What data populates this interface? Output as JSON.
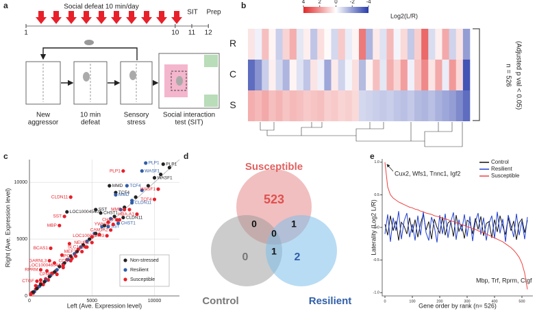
{
  "panel_labels": [
    "a",
    "b",
    "c",
    "d",
    "e"
  ],
  "panel_a": {
    "title": "Social defeat 10 min/day",
    "days": [
      1,
      10,
      11,
      12
    ],
    "events": [
      "SIT",
      "Prep"
    ],
    "steps": [
      [
        "New",
        "aggressor"
      ],
      [
        "10 min",
        "defeat"
      ],
      [
        "Sensory",
        "stress"
      ],
      [
        "Social interaction",
        "test (SIT)"
      ]
    ]
  },
  "panel_b": {
    "colorbar": {
      "ticks": [
        4,
        2,
        0,
        -2,
        -4
      ],
      "title": "Log2(L/R)"
    },
    "rows": [
      {
        "name": "R",
        "values": [
          0.5,
          -0.3,
          1.2,
          0.2,
          -1,
          0.8,
          1.5,
          -0.5,
          0.3,
          -1.2,
          0.6,
          0.1,
          -0.8,
          1.0,
          -0.4,
          0.2,
          2.5,
          -1.5,
          0.4,
          -0.6,
          1.3,
          -0.2,
          0.7,
          -1.1,
          0.9,
          2.8,
          -0.7,
          0.3,
          1.6,
          -0.9,
          0.5,
          -2
        ]
      },
      {
        "name": "C",
        "values": [
          -3,
          -2.2,
          -1,
          0.3,
          -0.8,
          -1.5,
          0.2,
          -0.6,
          -1.2,
          0.5,
          -0.3,
          -1.8,
          0.4,
          -0.9,
          -0.2,
          0.6,
          -1.4,
          0.2,
          1.2,
          -0.5,
          1.5,
          0.8,
          1.8,
          -0.3,
          1.1,
          2.2,
          0.5,
          1.6,
          -0.4,
          1.9,
          0.7,
          -3.5
        ]
      },
      {
        "name": "S",
        "values": [
          1.5,
          1.3,
          1.6,
          1.2,
          1.4,
          1.1,
          1.3,
          1.2,
          1.0,
          1.1,
          1.2,
          0.9,
          1.0,
          0.8,
          0.9,
          0.7,
          -0.8,
          -0.9,
          -1.0,
          -1.1,
          -1.0,
          -1.2,
          -1.3,
          -1.1,
          -1.4,
          -1.5,
          -1.3,
          -1.6,
          -1.8,
          -2.0,
          -2.4,
          -3.0
        ]
      }
    ],
    "annotation": [
      "n = 526",
      "(Adjusted p val < 0.05)"
    ]
  },
  "chart_data": [
    {
      "type": "scatter",
      "xlabel": "Left (Ave. Expression level)",
      "ylabel": "Right (Ave. Expression level)",
      "xlim": [
        0,
        12000
      ],
      "ylim": [
        0,
        12000
      ],
      "xticks": [
        0,
        5000,
        10000
      ],
      "yticks": [
        0,
        5000,
        10000
      ],
      "grid": true,
      "legend": "lower right",
      "series": [
        {
          "name": "Non-stressed",
          "color": "#222222",
          "x": [
            300,
            600,
            900,
            1200,
            1600,
            2000,
            2400,
            2800,
            3300,
            3800,
            4300,
            4800,
            5300,
            6000,
            6800,
            7600,
            8500,
            9500,
            10500,
            11200
          ],
          "y": [
            350,
            650,
            1000,
            1250,
            1700,
            2100,
            2600,
            2900,
            3500,
            3900,
            4500,
            5000,
            5500,
            6200,
            7000,
            7800,
            8700,
            9700,
            10700,
            11300
          ],
          "labels": [
            {
              "text": "PLP1",
              "x": 10700,
              "y": 11600
            },
            {
              "text": "WASF1",
              "x": 10000,
              "y": 10400
            },
            {
              "text": "TCF4",
              "x": 6900,
              "y": 9100
            },
            {
              "text": "MMD",
              "x": 6400,
              "y": 9700
            },
            {
              "text": "SST",
              "x": 5300,
              "y": 7600
            },
            {
              "text": "CHST1",
              "x": 5700,
              "y": 7300
            },
            {
              "text": "CLDN11",
              "x": 7500,
              "y": 6900
            },
            {
              "text": "LOC100045403",
              "x": 3000,
              "y": 7400
            }
          ]
        },
        {
          "name": "Resilient",
          "color": "#2f5ea8",
          "x": [
            400,
            800,
            1300,
            1700,
            2200,
            2700,
            3100,
            3600,
            4100,
            4600,
            5200,
            5800,
            6500,
            7300,
            8200,
            9000
          ],
          "y": [
            380,
            850,
            1350,
            1800,
            2300,
            2800,
            3200,
            3700,
            4300,
            4800,
            5500,
            6100,
            6800,
            7600,
            8400,
            9300
          ],
          "labels": [
            {
              "text": "PLP1",
              "x": 9300,
              "y": 11700
            },
            {
              "text": "WASF1",
              "x": 9000,
              "y": 11000
            },
            {
              "text": "TCF4",
              "x": 7800,
              "y": 9700
            },
            {
              "text": "MMD",
              "x": 6900,
              "y": 8900
            },
            {
              "text": "CLDN11",
              "x": 8200,
              "y": 8200
            },
            {
              "text": "CHST1",
              "x": 7100,
              "y": 6400
            },
            {
              "text": "SST",
              "x": 6300,
              "y": 6100
            }
          ]
        },
        {
          "name": "Susceptible",
          "color": "#e8202a",
          "x": [
            100,
            200,
            300,
            500,
            700,
            900,
            1100,
            1300,
            1500,
            1800,
            2100,
            2400,
            2700,
            3000,
            3400,
            3900,
            4500,
            5000,
            5600,
            6300,
            7000,
            8000,
            500,
            900,
            1400,
            2000,
            2600,
            3200
          ],
          "y": [
            150,
            300,
            250,
            600,
            800,
            1100,
            1000,
            1500,
            1400,
            2000,
            2200,
            2600,
            2500,
            3200,
            3300,
            4100,
            4300,
            5200,
            5400,
            6500,
            6700,
            7600,
            900,
            1400,
            2200,
            2900,
            3600,
            4600
          ],
          "labels": [
            {
              "text": "PLP1",
              "x": 7500,
              "y": 11000
            },
            {
              "text": "WASF1",
              "x": 10300,
              "y": 9400
            },
            {
              "text": "TCF4",
              "x": 10000,
              "y": 8500
            },
            {
              "text": "CLDN11",
              "x": 3300,
              "y": 8700
            },
            {
              "text": "MMD",
              "x": 7600,
              "y": 7600
            },
            {
              "text": "HBA-A1",
              "x": 8600,
              "y": 7200
            },
            {
              "text": "CHST1",
              "x": 7200,
              "y": 6700
            },
            {
              "text": "YWHAZ",
              "x": 6700,
              "y": 6300
            },
            {
              "text": "CAMTA2",
              "x": 6500,
              "y": 5800
            },
            {
              "text": "LOC100045403",
              "x": 6200,
              "y": 5300
            },
            {
              "text": "NEURL",
              "x": 5000,
              "y": 4700
            },
            {
              "text": "SLC1A3",
              "x": 4600,
              "y": 4300
            },
            {
              "text": "MEF2C",
              "x": 4200,
              "y": 3900
            },
            {
              "text": "HPCA",
              "x": 3700,
              "y": 3500
            },
            {
              "text": "CCK",
              "x": 3300,
              "y": 3100
            },
            {
              "text": "LOC100046044",
              "x": 2700,
              "y": 2700
            },
            {
              "text": "CPNE6",
              "x": 2200,
              "y": 1900
            },
            {
              "text": "CTGF",
              "x": 600,
              "y": 1300
            },
            {
              "text": "RPRM",
              "x": 900,
              "y": 2300
            },
            {
              "text": "GARNL3",
              "x": 1600,
              "y": 3100
            },
            {
              "text": "BCAS1",
              "x": 1700,
              "y": 4200
            },
            {
              "text": "MBP",
              "x": 2400,
              "y": 6200
            },
            {
              "text": "SST",
              "x": 2800,
              "y": 7000
            }
          ]
        }
      ]
    },
    {
      "type": "line",
      "xlabel": "Gene order by rank (n= 526)",
      "ylabel": "Laterality (Log2 L/R)",
      "xlim": [
        -10,
        540
      ],
      "ylim": [
        -1.05,
        1.05
      ],
      "xticks": [
        0,
        100,
        200,
        300,
        400,
        500
      ],
      "yticks": [
        {
          "value": 1,
          "label": "1.0"
        },
        0.5,
        {
          "value": 0,
          "label": "0.0"
        },
        -0.5,
        {
          "value": -1,
          "label": "-1.0"
        }
      ],
      "legend": "upper right",
      "annotations": [
        "Cux2, Wfs1, Tnnc1, Igf2",
        "Mbp, Trf, Rprm, Ctgf"
      ],
      "x": [
        0,
        10,
        20,
        30,
        40,
        50,
        60,
        70,
        80,
        90,
        100,
        110,
        120,
        130,
        140,
        150,
        160,
        170,
        180,
        190,
        200,
        210,
        220,
        230,
        240,
        250,
        260,
        270,
        280,
        290,
        300,
        310,
        320,
        330,
        340,
        350,
        360,
        370,
        380,
        390,
        400,
        410,
        420,
        430,
        440,
        450,
        460,
        470,
        480,
        490,
        500,
        510,
        520
      ],
      "series": [
        {
          "name": "Control",
          "color": "#111111",
          "values": [
            0.05,
            -0.12,
            0.18,
            -0.05,
            0.1,
            -0.2,
            0.08,
            0.02,
            -0.1,
            0.15,
            -0.08,
            0.12,
            -0.15,
            0.06,
            0.2,
            -0.04,
            0.09,
            -0.18,
            0.13,
            0.0,
            -0.09,
            0.16,
            -0.12,
            0.07,
            0.1,
            -0.14,
            0.19,
            -0.06,
            0.04,
            -0.17,
            0.11,
            0.08,
            -0.1,
            0.14,
            -0.03,
            0.17,
            -0.13,
            0.06,
            0.09,
            -0.16,
            0.12,
            -0.07,
            0.18,
            0.02,
            -0.11,
            0.15,
            -0.05,
            0.1,
            -0.19,
            0.07,
            0.13,
            -0.08,
            0.11
          ]
        },
        {
          "name": "Resilient",
          "color": "#1f3fd0",
          "values": [
            -0.1,
            0.2,
            -0.22,
            0.15,
            -0.05,
            0.25,
            -0.18,
            0.1,
            0.22,
            -0.15,
            0.05,
            -0.2,
            0.18,
            -0.12,
            0.24,
            -0.08,
            -0.2,
            0.16,
            0.02,
            -0.23,
            0.19,
            -0.1,
            0.21,
            -0.16,
            0.08,
            0.23,
            -0.19,
            0.12,
            -0.06,
            0.2,
            -0.14,
            0.17,
            -0.21,
            0.09,
            0.22,
            -0.11,
            0.15,
            -0.2,
            0.06,
            0.18,
            -0.17,
            0.24,
            -0.09,
            0.13,
            -0.22,
            0.19,
            0.03,
            -0.15,
            0.21,
            -0.12,
            0.1,
            -0.18,
            0.16
          ]
        },
        {
          "name": "Susceptible",
          "color": "#f04040",
          "values": [
            1.0,
            0.62,
            0.5,
            0.45,
            0.42,
            0.39,
            0.37,
            0.35,
            0.33,
            0.31,
            0.3,
            0.28,
            0.27,
            0.25,
            0.24,
            0.22,
            0.21,
            0.2,
            0.18,
            0.17,
            0.16,
            0.14,
            0.13,
            0.12,
            0.1,
            0.09,
            0.07,
            0.06,
            0.04,
            0.03,
            0.01,
            0.0,
            -0.02,
            -0.03,
            -0.05,
            -0.07,
            -0.08,
            -0.1,
            -0.12,
            -0.14,
            -0.16,
            -0.18,
            -0.2,
            -0.22,
            -0.25,
            -0.28,
            -0.31,
            -0.35,
            -0.4,
            -0.46,
            -0.55,
            -0.7,
            -0.95
          ]
        }
      ]
    }
  ],
  "panel_d": {
    "sets": [
      "Susceptible",
      "Control",
      "Resilient"
    ],
    "regions": [
      523,
      0,
      1,
      0,
      1,
      0,
      2
    ]
  }
}
